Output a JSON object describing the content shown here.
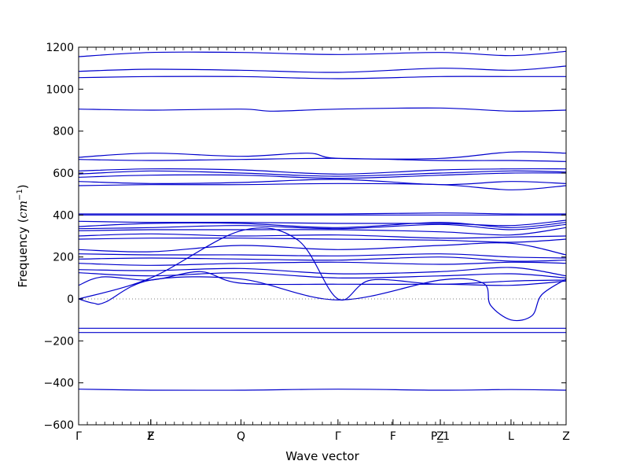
{
  "chart_data": {
    "type": "line",
    "title": "",
    "xlabel": "Wave vector",
    "ylabel": "Frequency (cm⁻¹)",
    "ylabel_prefix": "Frequency (",
    "ylabel_math": "cm",
    "ylabel_sup": "−1",
    "ylabel_suffix": ")",
    "ylim": [
      -600,
      1200
    ],
    "yticks": [
      -600,
      -400,
      -200,
      0,
      200,
      400,
      600,
      800,
      1000,
      1200
    ],
    "xlim": [
      0,
      1
    ],
    "grid": false,
    "legend": "none",
    "zero_line": true,
    "line_color": "#0000cc",
    "high_symmetry_points": [
      {
        "label": "Γ",
        "x": 0.0
      },
      {
        "label": "Z",
        "x": 0.148
      },
      {
        "label": "F",
        "x": 0.148
      },
      {
        "label": "Q",
        "x": 0.333
      },
      {
        "label": "Γ",
        "x": 0.532
      },
      {
        "label": "F",
        "x": 0.645
      },
      {
        "label": "P_1",
        "x": 0.742
      },
      {
        "label": "Z",
        "x": 0.742
      },
      {
        "label": "L",
        "x": 0.887
      },
      {
        "label": "Z",
        "x": 1.0
      }
    ],
    "series": [
      {
        "x": [
          0,
          0.148,
          0.333,
          0.532,
          0.742,
          0.887,
          1
        ],
        "y": [
          1155,
          1175,
          1175,
          1165,
          1175,
          1160,
          1180
        ]
      },
      {
        "x": [
          0,
          0.148,
          0.333,
          0.532,
          0.742,
          0.887,
          1
        ],
        "y": [
          1085,
          1095,
          1090,
          1080,
          1100,
          1090,
          1110
        ]
      },
      {
        "x": [
          0,
          0.148,
          0.333,
          0.532,
          0.742,
          0.887,
          1
        ],
        "y": [
          1055,
          1060,
          1060,
          1050,
          1060,
          1060,
          1060
        ]
      },
      {
        "x": [
          0,
          0.148,
          0.333,
          0.4,
          0.532,
          0.742,
          0.887,
          1
        ],
        "y": [
          905,
          900,
          905,
          895,
          905,
          910,
          895,
          900
        ]
      },
      {
        "x": [
          0,
          0.148,
          0.333,
          0.47,
          0.532,
          0.742,
          0.887,
          1
        ],
        "y": [
          675,
          695,
          680,
          695,
          670,
          670,
          700,
          695
        ]
      },
      {
        "x": [
          0,
          0.148,
          0.333,
          0.532,
          0.742,
          0.887,
          1
        ],
        "y": [
          665,
          660,
          665,
          670,
          660,
          660,
          655
        ]
      },
      {
        "x": [
          0,
          0.148,
          0.333,
          0.532,
          0.742,
          0.887,
          1
        ],
        "y": [
          610,
          620,
          615,
          595,
          615,
          620,
          620
        ]
      },
      {
        "x": [
          0,
          0.148,
          0.333,
          0.532,
          0.742,
          0.887,
          1
        ],
        "y": [
          595,
          610,
          600,
          585,
          600,
          610,
          605
        ]
      },
      {
        "x": [
          0,
          0.148,
          0.333,
          0.532,
          0.742,
          0.887,
          1
        ],
        "y": [
          580,
          590,
          590,
          575,
          590,
          600,
          600
        ]
      },
      {
        "x": [
          0,
          0.148,
          0.333,
          0.532,
          0.742,
          0.887,
          1
        ],
        "y": [
          560,
          550,
          555,
          570,
          545,
          560,
          550
        ]
      },
      {
        "x": [
          0,
          0.148,
          0.333,
          0.532,
          0.742,
          0.887,
          1
        ],
        "y": [
          540,
          545,
          545,
          550,
          545,
          520,
          540
        ]
      },
      {
        "x": [
          0,
          0.148,
          0.333,
          0.532,
          0.742,
          0.887,
          1
        ],
        "y": [
          405,
          405,
          405,
          405,
          410,
          405,
          405
        ]
      },
      {
        "x": [
          0,
          0.148,
          0.333,
          0.532,
          0.742,
          0.887,
          1
        ],
        "y": [
          400,
          400,
          400,
          400,
          400,
          400,
          400
        ]
      },
      {
        "x": [
          0,
          0.148,
          0.333,
          0.532,
          0.742,
          0.887,
          1
        ],
        "y": [
          370,
          365,
          365,
          360,
          360,
          350,
          375
        ]
      },
      {
        "x": [
          0,
          0.148,
          0.333,
          0.532,
          0.742,
          0.887,
          1
        ],
        "y": [
          345,
          360,
          360,
          340,
          365,
          340,
          365
        ]
      },
      {
        "x": [
          0,
          0.148,
          0.333,
          0.532,
          0.742,
          0.887,
          1
        ],
        "y": [
          335,
          340,
          350,
          335,
          355,
          330,
          355
        ]
      },
      {
        "x": [
          0,
          0.148,
          0.333,
          0.532,
          0.742,
          0.887,
          1
        ],
        "y": [
          325,
          330,
          330,
          330,
          320,
          305,
          340
        ]
      },
      {
        "x": [
          0,
          0.148,
          0.333,
          0.532,
          0.742,
          0.887,
          1
        ],
        "y": [
          300,
          310,
          300,
          305,
          290,
          295,
          300
        ]
      },
      {
        "x": [
          0,
          0.148,
          0.333,
          0.532,
          0.742,
          0.887,
          1
        ],
        "y": [
          285,
          290,
          290,
          285,
          280,
          270,
          285
        ]
      },
      {
        "x": [
          0,
          0.148,
          0.333,
          0.532,
          0.742,
          0.887,
          1
        ],
        "y": [
          235,
          225,
          255,
          235,
          255,
          265,
          210
        ]
      },
      {
        "x": [
          0,
          0.148,
          0.333,
          0.532,
          0.742,
          0.887,
          1
        ],
        "y": [
          215,
          210,
          210,
          205,
          215,
          200,
          195
        ]
      },
      {
        "x": [
          0,
          0.148,
          0.333,
          0.532,
          0.742,
          0.887,
          1
        ],
        "y": [
          190,
          195,
          190,
          185,
          200,
          180,
          185
        ]
      },
      {
        "x": [
          0,
          0.148,
          0.333,
          0.532,
          0.742,
          0.887,
          1
        ],
        "y": [
          170,
          160,
          170,
          175,
          165,
          175,
          170
        ]
      },
      {
        "x": [
          0,
          0.148,
          0.333,
          0.532,
          0.742,
          0.887,
          1
        ],
        "y": [
          140,
          135,
          145,
          120,
          130,
          150,
          110
        ]
      },
      {
        "x": [
          0,
          0.148,
          0.333,
          0.532,
          0.742,
          0.887,
          1
        ],
        "y": [
          125,
          110,
          125,
          100,
          110,
          120,
          100
        ]
      },
      {
        "x": [
          0,
          0.05,
          0.148,
          0.25,
          0.333,
          0.532,
          0.742,
          0.887,
          1
        ],
        "y": [
          65,
          105,
          90,
          130,
          75,
          70,
          70,
          65,
          85
        ]
      },
      {
        "x": [
          0,
          0.148,
          0.333,
          0.45,
          0.532,
          0.6,
          0.742,
          0.887,
          1
        ],
        "y": [
          0,
          100,
          325,
          280,
          0,
          90,
          70,
          85,
          90
        ]
      },
      {
        "x": [
          0,
          0.03,
          0.055,
          0.148,
          0.333,
          0.532,
          0.742,
          0.83,
          0.845,
          0.887,
          0.93,
          0.95,
          1
        ],
        "y": [
          0,
          -20,
          -15,
          90,
          95,
          -5,
          90,
          75,
          -30,
          -100,
          -80,
          20,
          95
        ]
      },
      {
        "x": [
          0,
          0.148,
          0.333,
          0.532,
          0.742,
          0.887,
          1
        ],
        "y": [
          -140,
          -140,
          -140,
          -140,
          -140,
          -140,
          -140
        ]
      },
      {
        "x": [
          0,
          0.148,
          0.333,
          0.532,
          0.742,
          0.887,
          1
        ],
        "y": [
          -160,
          -160,
          -160,
          -160,
          -160,
          -160,
          -160
        ]
      },
      {
        "x": [
          0,
          0.148,
          0.333,
          0.532,
          0.742,
          0.887,
          1
        ],
        "y": [
          -430,
          -435,
          -435,
          -430,
          -435,
          -432,
          -435
        ]
      }
    ]
  }
}
